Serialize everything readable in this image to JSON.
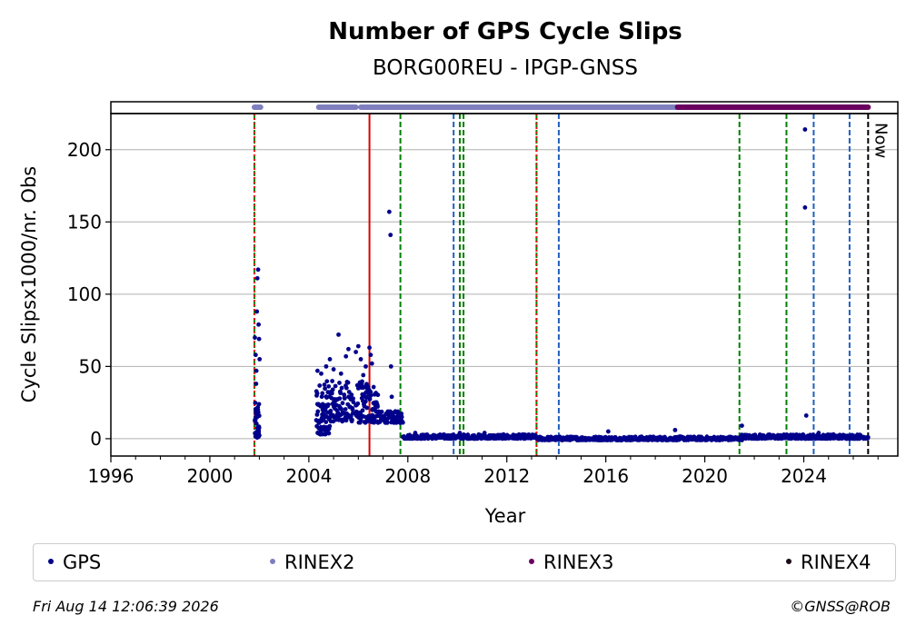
{
  "chart_data": {
    "type": "scatter",
    "title": "Number of GPS Cycle Slips",
    "subtitle": "BORG00REU - IPGP-GNSS",
    "xlabel": "Year",
    "ylabel": "Cycle Slipsx1000/nr. Obs",
    "xlim": [
      1996,
      2027.8
    ],
    "ylim": [
      -12,
      225
    ],
    "grid": "horizontal",
    "xticks": [
      1996,
      2000,
      2004,
      2008,
      2012,
      2016,
      2020,
      2024
    ],
    "yticks": [
      0,
      50,
      100,
      150,
      200
    ],
    "now_label": "Now",
    "now_year": 2026.6,
    "legend_position": "bottom",
    "series": [
      {
        "name": "GPS",
        "color": "#00008b",
        "segments": [
          {
            "x0": 2001.82,
            "x1": 2002.0,
            "ymin": 0,
            "ymax": 25,
            "n": 40
          },
          {
            "x0": 2004.3,
            "x1": 2004.85,
            "ymin": 3,
            "ymax": 40,
            "n": 70
          },
          {
            "x0": 2004.85,
            "x1": 2005.8,
            "ymin": 12,
            "ymax": 40,
            "n": 90
          },
          {
            "x0": 2005.9,
            "x1": 2006.8,
            "ymin": 11,
            "ymax": 40,
            "n": 90
          },
          {
            "x0": 2006.8,
            "x1": 2007.8,
            "ymin": 11,
            "ymax": 19,
            "n": 70
          },
          {
            "x0": 2007.8,
            "x1": 2013.2,
            "ymin": 0,
            "ymax": 3,
            "n": 260
          },
          {
            "x0": 2013.2,
            "x1": 2021.5,
            "ymin": -1,
            "ymax": 1.5,
            "n": 400
          },
          {
            "x0": 2021.5,
            "x1": 2026.6,
            "ymin": 0,
            "ymax": 3,
            "n": 260
          }
        ],
        "points": [
          [
            2001.82,
            70
          ],
          [
            2001.85,
            58
          ],
          [
            2001.88,
            47
          ],
          [
            2001.9,
            88
          ],
          [
            2001.92,
            111
          ],
          [
            2001.95,
            117
          ],
          [
            2001.97,
            79
          ],
          [
            2001.99,
            69
          ],
          [
            2002.01,
            55
          ],
          [
            2001.87,
            38
          ],
          [
            2004.35,
            47
          ],
          [
            2004.5,
            45
          ],
          [
            2004.7,
            50
          ],
          [
            2004.85,
            55
          ],
          [
            2005.0,
            48
          ],
          [
            2005.2,
            72
          ],
          [
            2005.3,
            45
          ],
          [
            2005.5,
            57
          ],
          [
            2005.6,
            62
          ],
          [
            2005.9,
            60
          ],
          [
            2006.0,
            64
          ],
          [
            2006.1,
            55
          ],
          [
            2006.2,
            44
          ],
          [
            2006.3,
            50
          ],
          [
            2006.45,
            63
          ],
          [
            2006.5,
            58
          ],
          [
            2006.55,
            52
          ],
          [
            2007.25,
            157
          ],
          [
            2007.3,
            141
          ],
          [
            2007.32,
            50
          ],
          [
            2007.35,
            29
          ],
          [
            2008.3,
            4
          ],
          [
            2010.1,
            4
          ],
          [
            2011.1,
            4
          ],
          [
            2016.1,
            5
          ],
          [
            2018.8,
            6
          ],
          [
            2021.5,
            9
          ],
          [
            2024.05,
            214
          ],
          [
            2024.05,
            160
          ],
          [
            2024.1,
            16
          ],
          [
            2024.6,
            4
          ],
          [
            2025.2,
            3
          ]
        ]
      },
      {
        "name": "RINEX2",
        "color": "#7f7fbf",
        "intervals": [
          [
            2001.8,
            2002.05
          ],
          [
            2004.4,
            2005.9
          ],
          [
            2006.1,
            2018.9
          ]
        ]
      },
      {
        "name": "RINEX3",
        "color": "#6a005f",
        "intervals": [
          [
            2018.9,
            2026.6
          ]
        ]
      },
      {
        "name": "RINEX4",
        "color": "#1a0a1a",
        "intervals": []
      }
    ],
    "event_lines": [
      {
        "x": 2001.8,
        "color": "#008000",
        "style": "dashed"
      },
      {
        "x": 2001.8,
        "color": "#ff0000",
        "style": "dotted"
      },
      {
        "x": 2006.45,
        "color": "#dd0000",
        "style": "solid"
      },
      {
        "x": 2007.7,
        "color": "#008000",
        "style": "dashed"
      },
      {
        "x": 2009.85,
        "color": "#1f5fbf",
        "style": "dashed"
      },
      {
        "x": 2010.1,
        "color": "#008000",
        "style": "dashed"
      },
      {
        "x": 2010.25,
        "color": "#008000",
        "style": "dashed"
      },
      {
        "x": 2013.2,
        "color": "#008000",
        "style": "dashed"
      },
      {
        "x": 2013.2,
        "color": "#ff0000",
        "style": "dotted"
      },
      {
        "x": 2014.1,
        "color": "#1f5fbf",
        "style": "dashed"
      },
      {
        "x": 2021.4,
        "color": "#008000",
        "style": "dashed"
      },
      {
        "x": 2023.3,
        "color": "#008000",
        "style": "dashed"
      },
      {
        "x": 2024.4,
        "color": "#1f5fbf",
        "style": "dashed"
      },
      {
        "x": 2025.85,
        "color": "#1f5fbf",
        "style": "dashed"
      },
      {
        "x": 2026.6,
        "color": "#000000",
        "style": "dashed"
      }
    ]
  },
  "legend": {
    "items": [
      {
        "label": "GPS",
        "color": "#00008b"
      },
      {
        "label": "RINEX2",
        "color": "#7f7fbf"
      },
      {
        "label": "RINEX3",
        "color": "#6a005f"
      },
      {
        "label": "RINEX4",
        "color": "#1a0a1a"
      }
    ]
  },
  "footer": {
    "timestamp": "Fri Aug 14 12:06:39 2026",
    "credit": "©GNSS@ROB"
  }
}
